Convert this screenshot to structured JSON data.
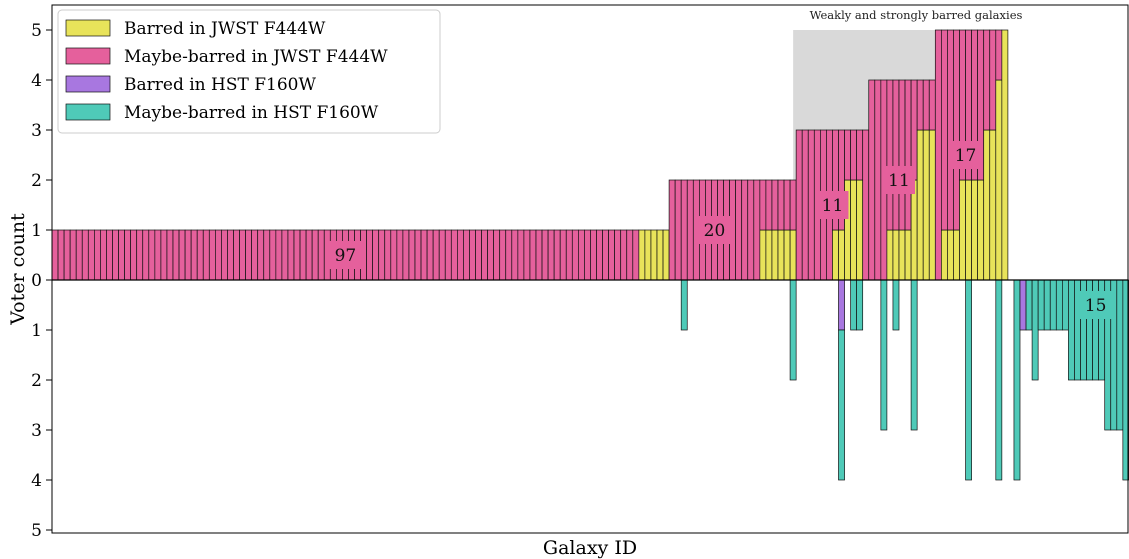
{
  "chart_data": {
    "type": "bar",
    "xlabel": "Galaxy ID",
    "ylabel": "Voter count",
    "y_tick_labels": [
      "5",
      "4",
      "3",
      "2",
      "1",
      "0",
      "1",
      "2",
      "3",
      "4",
      "5"
    ],
    "ylim": [
      -5,
      5
    ],
    "x_tick_labels": [],
    "grid": false,
    "legend_position": "top-left",
    "colors": {
      "jwst_barred": "#e8e35a",
      "jwst_maybe": "#e5609c",
      "hst_barred": "#a877e0",
      "hst_maybe": "#4fcab8"
    },
    "legend": [
      {
        "label": "Barred in JWST F444W",
        "color": "#e8e35a"
      },
      {
        "label": "Maybe-barred in JWST F444W",
        "color": "#e5609c"
      },
      {
        "label": "Barred in HST F160W",
        "color": "#a877e0"
      },
      {
        "label": "Maybe-barred in HST F160W",
        "color": "#4fcab8"
      }
    ],
    "shaded_region": {
      "label": "Weakly and strongly barred galaxies",
      "x_range": [
        122.5,
        157.5
      ],
      "y_range": [
        0,
        5
      ],
      "color": "#d9d9d9"
    },
    "galaxy_count": 158,
    "top_segments": [
      {
        "from": 0,
        "to": 97,
        "barred": 0,
        "maybe": 1
      },
      {
        "from": 97,
        "to": 102,
        "barred": 1,
        "maybe": 0
      },
      {
        "from": 102,
        "to": 117,
        "barred": 0,
        "maybe": 2
      },
      {
        "from": 117,
        "to": 123,
        "barred": 1,
        "maybe": 1
      },
      {
        "from": 123,
        "to": 129,
        "barred": 0,
        "maybe": 3
      },
      {
        "from": 129,
        "to": 131,
        "barred": 1,
        "maybe": 2
      },
      {
        "from": 131,
        "to": 134,
        "barred": 2,
        "maybe": 1
      },
      {
        "from": 134,
        "to": 135,
        "barred": 0,
        "maybe": 3
      },
      {
        "from": 135,
        "to": 138,
        "barred": 0,
        "maybe": 4
      },
      {
        "from": 138,
        "to": 142,
        "barred": 1,
        "maybe": 3
      },
      {
        "from": 142,
        "to": 143,
        "barred": 2,
        "maybe": 2
      },
      {
        "from": 143,
        "to": 146,
        "barred": 3,
        "maybe": 1
      },
      {
        "from": 146,
        "to": 147,
        "barred": 0,
        "maybe": 5
      },
      {
        "from": 147,
        "to": 150,
        "barred": 1,
        "maybe": 4
      },
      {
        "from": 150,
        "to": 154,
        "barred": 2,
        "maybe": 3
      },
      {
        "from": 154,
        "to": 156,
        "barred": 3,
        "maybe": 2
      },
      {
        "from": 156,
        "to": 157,
        "barred": 4,
        "maybe": 1
      },
      {
        "from": 157,
        "to": 158,
        "barred": 5,
        "maybe": 0
      }
    ],
    "bottom_bars": [
      {
        "index": 104,
        "barred": 0,
        "maybe": 1
      },
      {
        "index": 122,
        "barred": 0,
        "maybe": 2
      },
      {
        "index": 130,
        "barred": 1,
        "maybe": 3
      },
      {
        "index": 132,
        "barred": 0,
        "maybe": 1
      },
      {
        "index": 133,
        "barred": 0,
        "maybe": 1
      },
      {
        "index": 137,
        "barred": 0,
        "maybe": 3
      },
      {
        "index": 139,
        "barred": 0,
        "maybe": 1
      },
      {
        "index": 142,
        "barred": 0,
        "maybe": 3
      },
      {
        "index": 151,
        "barred": 0,
        "maybe": 4
      },
      {
        "index": 156,
        "barred": 0,
        "maybe": 4
      },
      {
        "index": 159,
        "barred": 0,
        "maybe": 4
      },
      {
        "index": 160,
        "barred": 1,
        "maybe": 0
      },
      {
        "index": 161,
        "barred": 0,
        "maybe": 1
      },
      {
        "index": 162,
        "barred": 0,
        "maybe": 2
      }
    ],
    "right_bars": [
      {
        "slot": 0,
        "barred": 0,
        "maybe": 1
      },
      {
        "slot": 1,
        "barred": 0,
        "maybe": 1
      },
      {
        "slot": 2,
        "barred": 0,
        "maybe": 1
      },
      {
        "slot": 3,
        "barred": 0,
        "maybe": 1
      },
      {
        "slot": 4,
        "barred": 0,
        "maybe": 1
      },
      {
        "slot": 5,
        "barred": 0,
        "maybe": 2
      },
      {
        "slot": 6,
        "barred": 0,
        "maybe": 2
      },
      {
        "slot": 7,
        "barred": 0,
        "maybe": 2
      },
      {
        "slot": 8,
        "barred": 0,
        "maybe": 2
      },
      {
        "slot": 9,
        "barred": 0,
        "maybe": 2
      },
      {
        "slot": 10,
        "barred": 0,
        "maybe": 2
      },
      {
        "slot": 11,
        "barred": 0,
        "maybe": 3
      },
      {
        "slot": 12,
        "barred": 0,
        "maybe": 3
      },
      {
        "slot": 13,
        "barred": 0,
        "maybe": 3
      },
      {
        "slot": 14,
        "barred": 0,
        "maybe": 4
      }
    ],
    "count_labels": [
      {
        "text": "97",
        "x": 48.5,
        "y": 0.5,
        "color": "#e5609c"
      },
      {
        "text": "20",
        "x": 109.5,
        "y": 1.0,
        "color": "#e5609c"
      },
      {
        "text": "11",
        "x": 129.0,
        "y": 1.5,
        "color": "#e5609c"
      },
      {
        "text": "11",
        "x": 140.0,
        "y": 2.0,
        "color": "#e5609c"
      },
      {
        "text": "17",
        "x": 151.0,
        "y": 2.5,
        "color": "#e5609c"
      },
      {
        "text": "15",
        "x": 172.5,
        "y": -0.5,
        "color": "#4fcab8"
      }
    ]
  }
}
